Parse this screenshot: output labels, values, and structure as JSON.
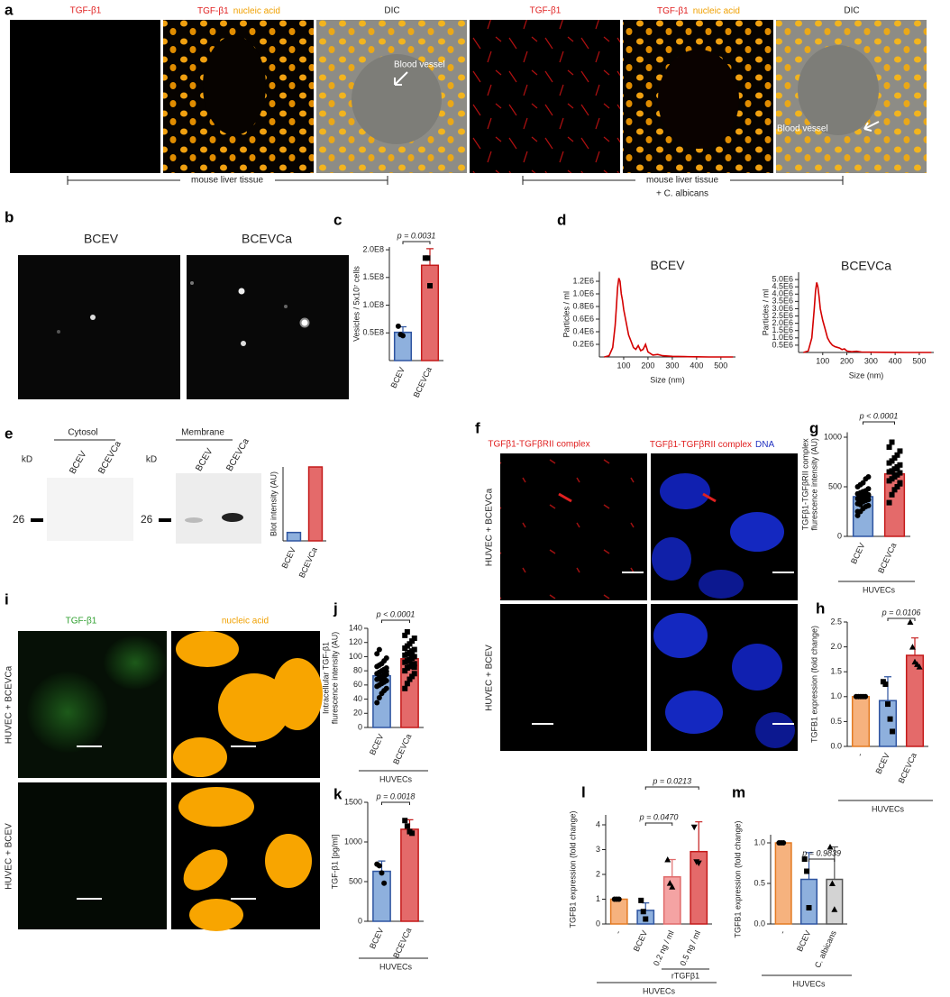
{
  "figure": {
    "panel_labels": [
      "a",
      "b",
      "c",
      "d",
      "e",
      "f",
      "g",
      "h",
      "i",
      "j",
      "k",
      "l",
      "m"
    ],
    "a": {
      "titles": [
        "TGF-β1",
        "TGF-β1",
        "nucleic acid",
        "DIC",
        "TGF-β1",
        "TGF-β1",
        "nucleic acid",
        "DIC"
      ],
      "annotations": [
        "Blood vessel",
        "Blood vessel"
      ],
      "captions": [
        "mouse liver tissue",
        "mouse liver tissue",
        "+ C. albicans"
      ]
    },
    "b": {
      "titles": [
        "BCEV",
        "BCEVCa"
      ]
    },
    "e": {
      "headers": [
        "Cytosol",
        "Membrane"
      ],
      "units": [
        "kD",
        "kD"
      ],
      "lanes": [
        "BCEV",
        "BCEVCa",
        "BCEV",
        "BCEVCa"
      ],
      "markers": [
        "26",
        "26"
      ]
    },
    "f": {
      "titles": [
        "TGFβ1-TGFβRII complex",
        "TGFβ1-TGFβRII complex",
        "DNA"
      ],
      "rows": [
        "HUVEC + BCEVCa",
        "HUVEC + BCEV"
      ]
    },
    "i": {
      "titles": [
        "TGF-β1",
        "nucleic acid"
      ],
      "rows": [
        "HUVEC + BCEVCa",
        "HUVEC + BCEV"
      ]
    }
  },
  "chart_data": [
    {
      "type": "bar",
      "ylabel": [
        "Vesicles / 5x10⁷ cells"
      ],
      "categories": [
        "BCEV",
        "BCEVCa"
      ],
      "values": [
        51000000,
        172000000
      ],
      "errors": [
        10000000,
        30000000
      ],
      "points": [
        [
          62000000,
          47000000,
          45000000
        ],
        [
          185000000,
          185000000,
          135000000
        ]
      ],
      "point_shapes": [
        "circle",
        "square"
      ],
      "colors": [
        "#8eb0dd",
        "#e46a6a"
      ],
      "edge_colors": [
        "#2e54a0",
        "#c41a1a"
      ],
      "ylim": [
        0,
        205000000
      ],
      "yticks": [
        {
          "value": 50000000,
          "label": "0.5E8"
        },
        {
          "value": 100000000,
          "label": "1.0E8"
        },
        {
          "value": 150000000,
          "label": "1.5E8"
        },
        {
          "value": 200000000,
          "label": "2.0E8"
        }
      ],
      "annotations": [
        "p = 0.0031"
      ]
    },
    {
      "type": "line",
      "title": "BCEV",
      "xlabel": "Size (nm)",
      "ylabel": [
        "Particles / ml"
      ],
      "color": "#d40000",
      "x": [
        20,
        40,
        55,
        65,
        70,
        75,
        80,
        85,
        90,
        95,
        100,
        110,
        120,
        130,
        140,
        150,
        160,
        170,
        180,
        190,
        200,
        220,
        240,
        260,
        300,
        350,
        400,
        450,
        500,
        550
      ],
      "values": [
        0,
        20000,
        150000,
        500000,
        800000,
        1100000,
        1250000,
        1200000,
        1000000,
        900000,
        750000,
        550000,
        350000,
        250000,
        150000,
        120000,
        180000,
        100000,
        120000,
        200000,
        80000,
        30000,
        40000,
        20000,
        10000,
        5000,
        3000,
        0,
        0,
        0
      ],
      "xlim": [
        0,
        560
      ],
      "ylim": [
        0,
        1350000
      ],
      "xticks": [
        100,
        200,
        300,
        400,
        500
      ],
      "yticks": [
        {
          "value": 200000,
          "label": "0.2E6"
        },
        {
          "value": 400000,
          "label": "0.4E6"
        },
        {
          "value": 600000,
          "label": "0.6E6"
        },
        {
          "value": 800000,
          "label": "0.8E6"
        },
        {
          "value": 1000000,
          "label": "1.0E6"
        },
        {
          "value": 1200000,
          "label": "1.2E6"
        }
      ]
    },
    {
      "type": "line",
      "title": "BCEVCa",
      "xlabel": "Size (nm)",
      "ylabel": [
        "Particles / ml"
      ],
      "color": "#d40000",
      "x": [
        20,
        40,
        55,
        65,
        70,
        75,
        80,
        85,
        90,
        95,
        100,
        110,
        120,
        130,
        140,
        150,
        160,
        170,
        180,
        190,
        200,
        220,
        240,
        260,
        300,
        350,
        400,
        450,
        500,
        550
      ],
      "values": [
        0,
        100000,
        1000000,
        3000000,
        4200000,
        4800000,
        4500000,
        3800000,
        3000000,
        2600000,
        2200000,
        1600000,
        1000000,
        700000,
        500000,
        400000,
        350000,
        300000,
        200000,
        250000,
        100000,
        50000,
        80000,
        30000,
        20000,
        10000,
        5000,
        0,
        0,
        0
      ],
      "xlim": [
        0,
        560
      ],
      "ylim": [
        0,
        5500000
      ],
      "xticks": [
        100,
        200,
        300,
        400,
        500
      ],
      "yticks": [
        {
          "value": 500000,
          "label": "0.5E6"
        },
        {
          "value": 1000000,
          "label": "1.0E6"
        },
        {
          "value": 1500000,
          "label": "1.5E6"
        },
        {
          "value": 2000000,
          "label": "2.0E6"
        },
        {
          "value": 2500000,
          "label": "2.5E6"
        },
        {
          "value": 3000000,
          "label": "3.0E6"
        },
        {
          "value": 3500000,
          "label": "3.5E6"
        },
        {
          "value": 4000000,
          "label": "4.0E6"
        },
        {
          "value": 4500000,
          "label": "4.5E6"
        },
        {
          "value": 5000000,
          "label": "5.0E6"
        }
      ]
    },
    {
      "type": "bar",
      "ylabel": [
        "Blot intensity (AU)"
      ],
      "categories": [
        "BCEV",
        "BCEVCa"
      ],
      "values": [
        50,
        440
      ],
      "colors": [
        "#8eb0dd",
        "#e46a6a"
      ],
      "edge_colors": [
        "#2e54a0",
        "#c41a1a"
      ],
      "ylim": [
        0,
        440
      ]
    },
    {
      "type": "bar",
      "ylabel": [
        "TGFβ1-TGFβRII complex",
        "flurescence intensity (AU)"
      ],
      "categories": [
        "BCEV",
        "BCEVCa"
      ],
      "values": [
        400,
        630
      ],
      "errors": [
        25,
        40
      ],
      "points": [
        [
          210,
          250,
          280,
          300,
          310,
          330,
          340,
          350,
          360,
          370,
          380,
          390,
          400,
          410,
          420,
          430,
          440,
          450,
          460,
          480,
          500,
          520,
          540,
          580,
          600,
          250,
          320,
          450,
          370,
          410
        ],
        [
          340,
          420,
          470,
          500,
          540,
          560,
          580,
          600,
          620,
          640,
          650,
          660,
          680,
          700,
          720,
          740,
          760,
          790,
          820,
          860,
          900,
          950,
          610,
          690,
          530
        ]
      ],
      "point_shapes": [
        "circle",
        "square"
      ],
      "colors": [
        "#8eb0dd",
        "#e46a6a"
      ],
      "edge_colors": [
        "#2e54a0",
        "#c41a1a"
      ],
      "ylim": [
        0,
        1050
      ],
      "yticks": [
        0,
        500,
        1000
      ],
      "annotations": [
        "p < 0.0001"
      ],
      "group_label": "HUVECs"
    },
    {
      "type": "bar",
      "ylabel": [
        "TGFB1 expression (fold change)"
      ],
      "categories": [
        "-",
        "BCEV",
        "BCEVCa"
      ],
      "values": [
        1.0,
        0.92,
        1.83
      ],
      "errors": [
        0,
        0.48,
        0.35
      ],
      "points": [
        [
          1,
          1,
          1,
          1,
          1
        ],
        [
          1.3,
          1.25,
          0.85,
          0.55,
          0.3
        ],
        [
          2.5,
          2.0,
          1.7,
          1.65,
          1.6
        ]
      ],
      "point_shapes": [
        "circle",
        "square",
        "triangle"
      ],
      "colors": [
        "#f6b27e",
        "#8eb0dd",
        "#e46a6a"
      ],
      "edge_colors": [
        "#e37a22",
        "#2e54a0",
        "#c41a1a"
      ],
      "ylim": [
        0,
        2.5
      ],
      "yticks": [
        {
          "value": 0,
          "label": "0.0"
        },
        0.5,
        {
          "value": 1,
          "label": "1.0"
        },
        1.5,
        {
          "value": 2,
          "label": "2.0"
        },
        2.5
      ],
      "annotations": [
        "p = 0.0106"
      ],
      "group_label": "HUVECs"
    },
    {
      "type": "bar",
      "ylabel": [
        "Intracellular TGF-β1",
        "flurescence intensity (AU)"
      ],
      "categories": [
        "BCEV",
        "BCEVCa"
      ],
      "values": [
        73,
        97
      ],
      "errors": [
        4,
        5
      ],
      "points": [
        [
          35,
          42,
          48,
          52,
          55,
          58,
          60,
          62,
          64,
          66,
          68,
          70,
          72,
          74,
          75,
          76,
          78,
          80,
          82,
          84,
          86,
          88,
          90,
          94,
          98,
          104,
          110,
          65,
          71,
          79
        ],
        [
          55,
          62,
          68,
          72,
          76,
          80,
          84,
          86,
          88,
          90,
          92,
          94,
          96,
          98,
          100,
          102,
          104,
          106,
          108,
          110,
          112,
          115,
          118,
          122,
          126,
          130,
          135,
          95,
          101,
          85
        ]
      ],
      "point_shapes": [
        "circle",
        "square"
      ],
      "colors": [
        "#8eb0dd",
        "#e46a6a"
      ],
      "edge_colors": [
        "#2e54a0",
        "#c41a1a"
      ],
      "ylim": [
        0,
        140
      ],
      "yticks": [
        0,
        20,
        40,
        60,
        80,
        100,
        120,
        140
      ],
      "annotations": [
        "p < 0.0001"
      ],
      "group_label": "HUVECs"
    },
    {
      "type": "bar",
      "ylabel": [
        "TGF-β1 [pg/ml]"
      ],
      "categories": [
        "BCEV",
        "BCEVCa"
      ],
      "values": [
        630,
        1160
      ],
      "errors": [
        130,
        120
      ],
      "points": [
        [
          720,
          700,
          610,
          480
        ],
        [
          1270,
          1200,
          1130,
          1110
        ]
      ],
      "point_shapes": [
        "circle",
        "square"
      ],
      "colors": [
        "#8eb0dd",
        "#e46a6a"
      ],
      "edge_colors": [
        "#2e54a0",
        "#c41a1a"
      ],
      "ylim": [
        0,
        1500
      ],
      "yticks": [
        0,
        500,
        1000,
        1500
      ],
      "annotations": [
        "p = 0.0018"
      ],
      "group_label": "HUVECs"
    },
    {
      "type": "bar",
      "ylabel": [
        "TGFB1 expression (fold change)"
      ],
      "categories": [
        "-",
        "BCEV",
        "0.2 ng / ml",
        "0.5 ng / ml"
      ],
      "values": [
        1.0,
        0.55,
        1.9,
        2.92
      ],
      "errors": [
        0,
        0.3,
        0.7,
        1.2
      ],
      "points": [
        [
          1,
          1,
          1
        ],
        [
          0.95,
          0.5,
          0.2
        ],
        [
          2.6,
          1.65,
          1.5
        ],
        [
          3.9,
          2.5,
          2.45
        ]
      ],
      "point_shapes": [
        "circle",
        "square",
        "triangle",
        "triangle-down"
      ],
      "colors": [
        "#f6b27e",
        "#8eb0dd",
        "#f4a3a3",
        "#e46a6a"
      ],
      "edge_colors": [
        "#e37a22",
        "#2e54a0",
        "#e06a6a",
        "#c41a1a"
      ],
      "ylim": [
        0,
        4.4
      ],
      "yticks": [
        0,
        1,
        2,
        3,
        4
      ],
      "annotations": [
        "p = 0.0470",
        "p = 0.0213"
      ],
      "subgroup_label": "rTGFβ1",
      "group_label": "HUVECs"
    },
    {
      "type": "bar",
      "ylabel": [
        "TGFB1 expression (fold change)"
      ],
      "categories": [
        "-",
        "BCEV",
        "C. albicans"
      ],
      "values": [
        1.0,
        0.55,
        0.55
      ],
      "errors": [
        0,
        0.33,
        0.4
      ],
      "points": [
        [
          1,
          1,
          1
        ],
        [
          0.8,
          0.65,
          0.2
        ],
        [
          0.95,
          0.5,
          0.18
        ]
      ],
      "point_shapes": [
        "circle",
        "square",
        "triangle"
      ],
      "colors": [
        "#f6b27e",
        "#8eb0dd",
        "#d3d3d3"
      ],
      "edge_colors": [
        "#e37a22",
        "#2e54a0",
        "#555555"
      ],
      "ylim": [
        0,
        1.1
      ],
      "yticks": [
        {
          "value": 0,
          "label": "0.0"
        },
        0.5,
        {
          "value": 1,
          "label": "1.0"
        }
      ],
      "annotations": [
        "p = 0.9839"
      ],
      "group_label": "HUVECs"
    }
  ]
}
